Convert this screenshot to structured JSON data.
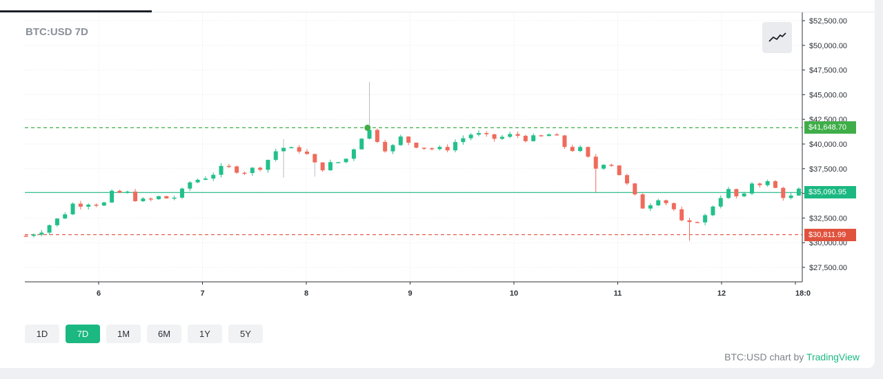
{
  "chart_data": {
    "type": "candlestick",
    "title": "BTC:USD 7D",
    "symbol": "BTC:USD",
    "x_tick_labels": [
      "6",
      "7",
      "8",
      "9",
      "10",
      "11",
      "12",
      "18:0"
    ],
    "y_tick_labels": [
      "$52,500.00",
      "$50,000.00",
      "$47,500.00",
      "$45,000.00",
      "$42,500.00",
      "$40,000.00",
      "$37,500.00",
      "$35,000.00",
      "$32,500.00",
      "$30,000.00",
      "$27,500.00"
    ],
    "ylim": [
      26000,
      53000
    ],
    "x_range_days": [
      5.3,
      12.75
    ],
    "grid": true,
    "up_color": "#22c08a",
    "down_color": "#ef6b5c",
    "price_levels": [
      {
        "label": "$41,648.70",
        "value": 41648.7,
        "color": "#3fae49",
        "style": "dashed"
      },
      {
        "label": "$35,090.95",
        "value": 35090.95,
        "color": "#1bb882",
        "style": "solid"
      },
      {
        "label": "$30,811.99",
        "value": 30811.99,
        "color": "#e0523e",
        "style": "dashed"
      }
    ],
    "marker": {
      "day": 8.59,
      "value": 41648.7,
      "color": "#3fae49"
    },
    "close_path": [
      [
        5.3,
        30700
      ],
      [
        5.45,
        31400
      ],
      [
        5.6,
        32300
      ],
      [
        5.75,
        33900
      ],
      [
        5.9,
        34200
      ],
      [
        6.05,
        33900
      ],
      [
        6.15,
        35100
      ],
      [
        6.3,
        34900
      ],
      [
        6.45,
        34000
      ],
      [
        6.55,
        34600
      ],
      [
        6.7,
        34500
      ],
      [
        6.8,
        35000
      ],
      [
        6.85,
        36000
      ],
      [
        7.0,
        36600
      ],
      [
        7.15,
        37300
      ],
      [
        7.3,
        37600
      ],
      [
        7.45,
        37200
      ],
      [
        7.6,
        38100
      ],
      [
        7.75,
        39800
      ],
      [
        7.85,
        39300
      ],
      [
        7.95,
        39600
      ],
      [
        8.1,
        37600
      ],
      [
        8.25,
        37900
      ],
      [
        8.4,
        38600
      ],
      [
        8.5,
        40500
      ],
      [
        8.59,
        41500
      ],
      [
        8.7,
        40400
      ],
      [
        8.8,
        39200
      ],
      [
        8.9,
        40600
      ],
      [
        9.0,
        40200
      ],
      [
        9.15,
        39700
      ],
      [
        9.3,
        39300
      ],
      [
        9.45,
        40300
      ],
      [
        9.6,
        41100
      ],
      [
        9.75,
        40500
      ],
      [
        9.9,
        40700
      ],
      [
        10.05,
        40900
      ],
      [
        10.2,
        40400
      ],
      [
        10.35,
        41000
      ],
      [
        10.5,
        39700
      ],
      [
        10.65,
        39300
      ],
      [
        10.78,
        37500
      ],
      [
        10.9,
        38600
      ],
      [
        11.05,
        36500
      ],
      [
        11.15,
        34700
      ],
      [
        11.25,
        33600
      ],
      [
        11.4,
        34800
      ],
      [
        11.55,
        33300
      ],
      [
        11.65,
        31200
      ],
      [
        11.75,
        32400
      ],
      [
        11.85,
        32600
      ],
      [
        11.95,
        34500
      ],
      [
        12.05,
        35300
      ],
      [
        12.2,
        34200
      ],
      [
        12.3,
        36300
      ],
      [
        12.45,
        36000
      ],
      [
        12.55,
        35200
      ],
      [
        12.65,
        34400
      ],
      [
        12.75,
        35200
      ]
    ],
    "spikes": [
      {
        "day": 8.59,
        "high": 46300
      },
      {
        "day": 7.76,
        "high": 40500,
        "low": 36600
      },
      {
        "day": 8.09,
        "low": 36700
      },
      {
        "day": 10.82,
        "low": 35100
      },
      {
        "day": 11.67,
        "low": 30200
      }
    ]
  },
  "ui": {
    "chart_type_icon": "line-chart-icon",
    "ranges": [
      "1D",
      "7D",
      "1M",
      "6M",
      "1Y",
      "5Y"
    ],
    "active_range": "7D",
    "attribution_prefix": "BTC:USD chart by",
    "attribution_brand": "TradingView"
  }
}
